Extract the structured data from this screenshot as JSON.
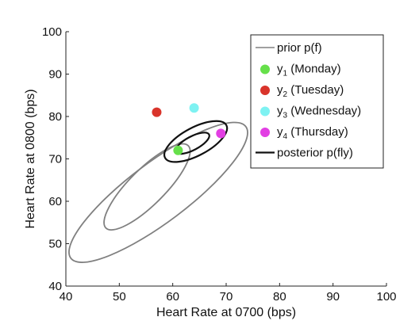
{
  "chart_data": {
    "type": "scatter",
    "xlabel": "Heart Rate at 0700 (bps)",
    "ylabel": "Heart Rate at 0800 (bps)",
    "xlim": [
      40,
      100
    ],
    "ylim": [
      40,
      100
    ],
    "xticks": [
      40,
      50,
      60,
      70,
      80,
      90,
      100
    ],
    "yticks": [
      40,
      50,
      60,
      70,
      80,
      90,
      100
    ],
    "grid": false,
    "legend_position": "top-right",
    "points": [
      {
        "name": "y1 (Monday)",
        "label_main": "y",
        "label_sub": "1",
        "label_rest": " (Monday)",
        "x": 61,
        "y": 72,
        "color": "#66e04a"
      },
      {
        "name": "y2 (Tuesday)",
        "label_main": "y",
        "label_sub": "2",
        "label_rest": " (Tuesday)",
        "x": 57,
        "y": 81,
        "color": "#d9342b"
      },
      {
        "name": "y3 (Wednesday)",
        "label_main": "y",
        "label_sub": "3",
        "label_rest": " (Wednesday)",
        "x": 64,
        "y": 82,
        "color": "#7ef2f2"
      },
      {
        "name": "y4 (Thursday)",
        "label_main": "y",
        "label_sub": "4",
        "label_rest": " (Thursday)",
        "x": 69,
        "y": 76,
        "color": "#e23fe3"
      }
    ],
    "series": [
      {
        "name": "prior p(f)",
        "color": "#808080",
        "contours": [
          {
            "cx": 57.3,
            "cy": 62.1,
            "rx": 20.5,
            "ry": 7.0,
            "angle_deg": 37
          },
          {
            "cx": 55.2,
            "cy": 63.4,
            "rx": 10.9,
            "ry": 4.2,
            "angle_deg": 45
          }
        ]
      },
      {
        "name": "posterior p(fly)",
        "color": "#111111",
        "contours": [
          {
            "cx": 64.3,
            "cy": 74.1,
            "rx": 6.5,
            "ry": 3.3,
            "angle_deg": 28
          },
          {
            "cx": 63.7,
            "cy": 73.7,
            "rx": 3.5,
            "ry": 1.6,
            "angle_deg": 28
          }
        ]
      }
    ],
    "legend": [
      {
        "kind": "line",
        "main": "prior p(f)",
        "sub": "",
        "rest": "",
        "color": "#808080"
      },
      {
        "kind": "dot",
        "main": "y",
        "sub": "1",
        "rest": " (Monday)",
        "color": "#66e04a"
      },
      {
        "kind": "dot",
        "main": "y",
        "sub": "2",
        "rest": " (Tuesday)",
        "color": "#d9342b"
      },
      {
        "kind": "dot",
        "main": "y",
        "sub": "3",
        "rest": " (Wednesday)",
        "color": "#7ef2f2"
      },
      {
        "kind": "dot",
        "main": "y",
        "sub": "4",
        "rest": " (Thursday)",
        "color": "#e23fe3"
      },
      {
        "kind": "line",
        "main": "posterior p(fly)",
        "sub": "",
        "rest": "",
        "color": "#111111"
      }
    ]
  }
}
